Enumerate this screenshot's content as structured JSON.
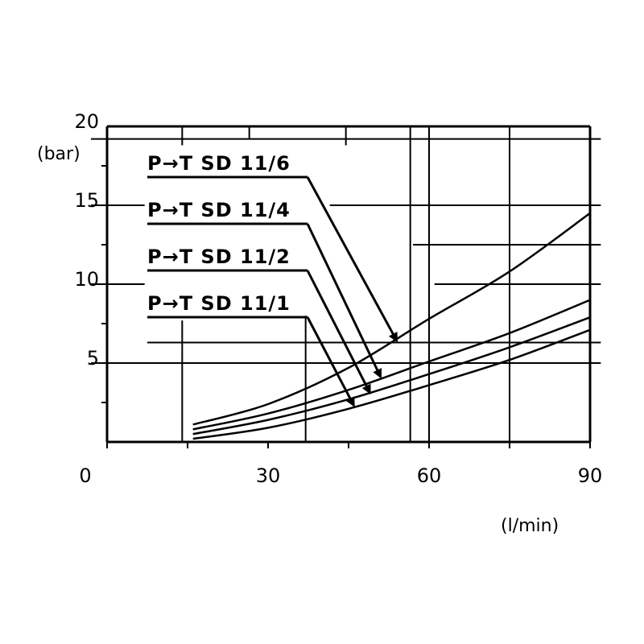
{
  "chart_data": {
    "type": "line",
    "title": "",
    "xlabel": "(l/min)",
    "ylabel": "(bar)",
    "xlim": [
      0,
      90
    ],
    "ylim": [
      0,
      20
    ],
    "x_ticks": [
      0,
      30,
      60,
      90
    ],
    "y_ticks": [
      5,
      10,
      15,
      20
    ],
    "grid": true,
    "colors": {
      "line": "#000000",
      "background": "#ffffff"
    },
    "series": [
      {
        "name": "P→T SD 11/6",
        "x": [
          16,
          30,
          45,
          60,
          75,
          90
        ],
        "y": [
          1.1,
          2.4,
          4.7,
          7.8,
          10.8,
          14.5
        ]
      },
      {
        "name": "P→T SD 11/4",
        "x": [
          16,
          30,
          45,
          60,
          75,
          90
        ],
        "y": [
          0.8,
          1.8,
          3.3,
          5.1,
          6.9,
          9.0
        ]
      },
      {
        "name": "P→T SD 11/2",
        "x": [
          16,
          30,
          45,
          60,
          75,
          90
        ],
        "y": [
          0.5,
          1.4,
          2.7,
          4.3,
          6.0,
          7.9
        ]
      },
      {
        "name": "P→T SD 11/1",
        "x": [
          16,
          30,
          45,
          60,
          75,
          90
        ],
        "y": [
          0.2,
          0.9,
          2.1,
          3.6,
          5.2,
          7.1
        ]
      }
    ],
    "annotations": [
      {
        "label": "P→T SD 11/6",
        "points_to": {
          "x": 54,
          "y": 6.4
        }
      },
      {
        "label": "P→T SD 11/4",
        "points_to": {
          "x": 51,
          "y": 4.1
        }
      },
      {
        "label": "P→T SD 11/2",
        "points_to": {
          "x": 49,
          "y": 3.1
        }
      },
      {
        "label": "P→T SD 11/1",
        "points_to": {
          "x": 46,
          "y": 2.3
        }
      }
    ]
  }
}
